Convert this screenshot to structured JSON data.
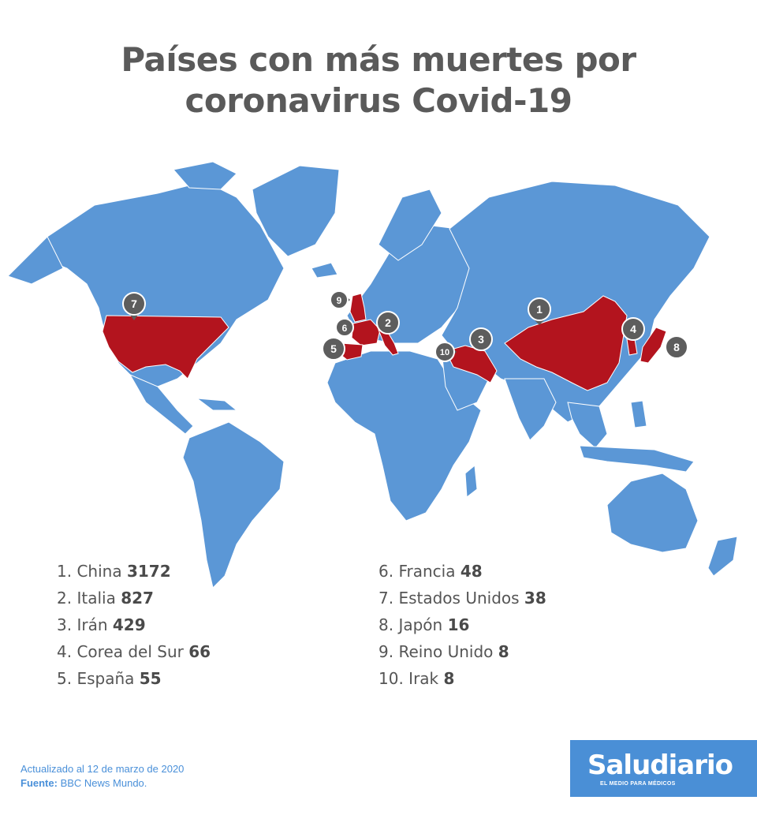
{
  "title": {
    "line1": "Países con más muertes por",
    "line2": "coronavirus Covid-19"
  },
  "colors": {
    "land": "#5b97d6",
    "highlight": "#b3141e",
    "pin": "#5d5d5d",
    "title": "#5a5a5a",
    "brand": "#4a8fd6"
  },
  "markers": [
    {
      "rank": "1",
      "country": "China"
    },
    {
      "rank": "2",
      "country": "Italia"
    },
    {
      "rank": "3",
      "country": "Irán"
    },
    {
      "rank": "4",
      "country": "Corea del Sur"
    },
    {
      "rank": "5",
      "country": "España"
    },
    {
      "rank": "6",
      "country": "Francia"
    },
    {
      "rank": "7",
      "country": "Estados Unidos"
    },
    {
      "rank": "8",
      "country": "Japón"
    },
    {
      "rank": "9",
      "country": "Reino Unido"
    },
    {
      "rank": "10",
      "country": "Irak"
    }
  ],
  "ranking": [
    {
      "prefix": "1.",
      "country": "China",
      "deaths": "3172"
    },
    {
      "prefix": "2.",
      "country": "Italia",
      "deaths": "827"
    },
    {
      "prefix": "3.",
      "country": "Irán",
      "deaths": "429"
    },
    {
      "prefix": "4.",
      "country": "Corea del Sur",
      "deaths": "66"
    },
    {
      "prefix": "5.",
      "country": "España",
      "deaths": "55"
    },
    {
      "prefix": "6.",
      "country": "Francia",
      "deaths": "48"
    },
    {
      "prefix": "7.",
      "country": "Estados Unidos",
      "deaths": "38"
    },
    {
      "prefix": "8.",
      "country": "Japón",
      "deaths": "16"
    },
    {
      "prefix": "9.",
      "country": "Reino Unido",
      "deaths": "8"
    },
    {
      "prefix": "10.",
      "country": "Irak",
      "deaths": "8"
    }
  ],
  "footer": {
    "updated": "Actualizado al 12 de marzo de 2020",
    "source_label": "Fuente:",
    "source_value": "BBC News Mundo."
  },
  "logo": {
    "name": "Saludiario",
    "tagline": "EL MEDIO PARA MÉDICOS"
  }
}
